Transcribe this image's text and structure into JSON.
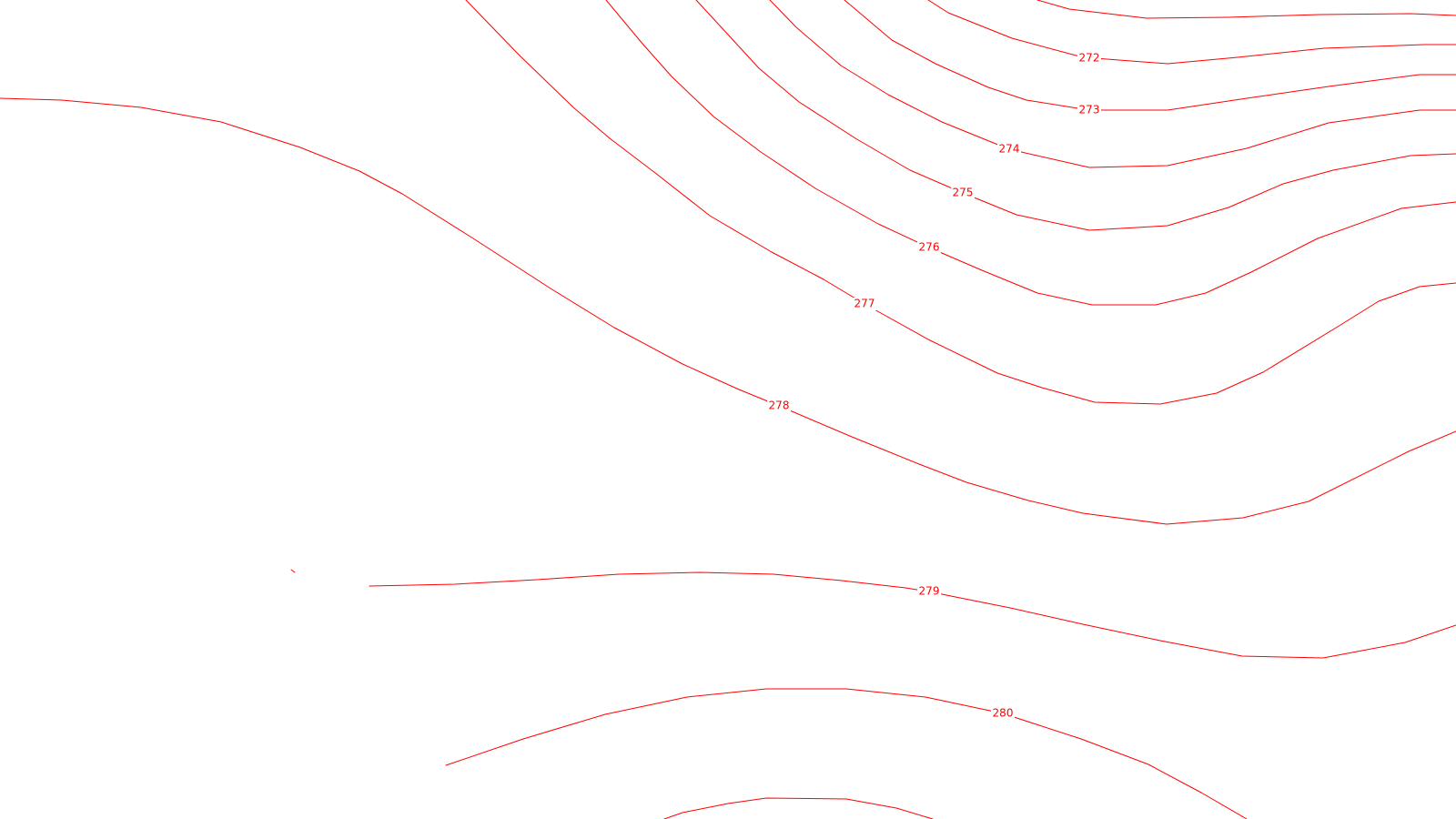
{
  "map": {
    "line_color": "#ff0000",
    "background_color": "#ffffff",
    "contours": [
      {
        "id": "272",
        "label": "272"
      },
      {
        "id": "273",
        "label": "273"
      },
      {
        "id": "274",
        "label": "274"
      },
      {
        "id": "275",
        "label": "275"
      },
      {
        "id": "276",
        "label": "276"
      },
      {
        "id": "277",
        "label": "277"
      },
      {
        "id": "278",
        "label": "278"
      },
      {
        "id": "279",
        "label": "279"
      },
      {
        "id": "280",
        "label": "280"
      }
    ]
  }
}
